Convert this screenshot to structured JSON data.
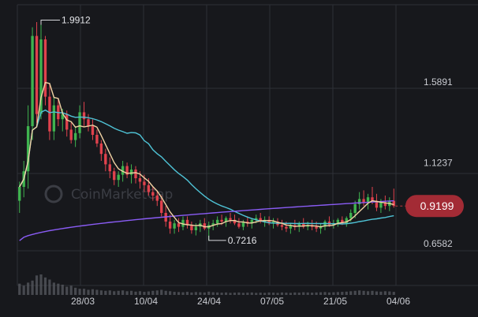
{
  "watermark": "CoinMarketCap",
  "chart_data": {
    "type": "candlestick",
    "y_ticks": [
      "1.5891",
      "1.1237",
      "0.6582"
    ],
    "y_tick_values": [
      1.5891,
      1.1237,
      0.6582
    ],
    "x_ticks": [
      "28/03",
      "10/04",
      "24/04",
      "07/05",
      "21/05",
      "04/06"
    ],
    "ylim": [
      0.58,
      2.08
    ],
    "grid": true,
    "annotations": {
      "high": {
        "label": "1.9912",
        "value": 1.9912,
        "index": 5
      },
      "low": {
        "label": "0.7216",
        "value": 0.7216,
        "index": 44
      }
    },
    "current_price": {
      "label": "0.9199",
      "value": 0.9199
    },
    "colors": {
      "up": "#3fb34f",
      "down": "#e0424d",
      "ma_short": "#f1d3a4",
      "ma_mid": "#4fc3d6",
      "ma_long": "#8a5cf5",
      "price_tag": "#a32b35",
      "grid": "#2e3036"
    },
    "candles": [
      [
        0.95,
        1.06,
        0.88,
        1.03
      ],
      [
        1.03,
        1.18,
        0.97,
        1.12
      ],
      [
        1.12,
        1.5,
        1.02,
        1.38
      ],
      [
        1.38,
        1.95,
        1.3,
        1.9
      ],
      [
        1.9,
        1.98,
        1.4,
        1.45
      ],
      [
        1.45,
        1.99,
        1.42,
        1.88
      ],
      [
        1.88,
        1.9,
        1.5,
        1.55
      ],
      [
        1.55,
        1.62,
        1.3,
        1.35
      ],
      [
        1.35,
        1.55,
        1.3,
        1.5
      ],
      [
        1.5,
        1.54,
        1.38,
        1.42
      ],
      [
        1.42,
        1.48,
        1.35,
        1.45
      ],
      [
        1.45,
        1.47,
        1.32,
        1.36
      ],
      [
        1.36,
        1.4,
        1.28,
        1.3
      ],
      [
        1.3,
        1.38,
        1.26,
        1.34
      ],
      [
        1.34,
        1.5,
        1.31,
        1.46
      ],
      [
        1.46,
        1.52,
        1.38,
        1.42
      ],
      [
        1.42,
        1.45,
        1.35,
        1.38
      ],
      [
        1.38,
        1.42,
        1.3,
        1.33
      ],
      [
        1.33,
        1.36,
        1.26,
        1.28
      ],
      [
        1.28,
        1.3,
        1.18,
        1.22
      ],
      [
        1.22,
        1.25,
        1.12,
        1.16
      ],
      [
        1.16,
        1.2,
        1.08,
        1.12
      ],
      [
        1.12,
        1.14,
        1.04,
        1.07
      ],
      [
        1.07,
        1.12,
        1.03,
        1.1
      ],
      [
        1.1,
        1.18,
        1.06,
        1.15
      ],
      [
        1.15,
        1.17,
        1.08,
        1.1
      ],
      [
        1.1,
        1.16,
        1.05,
        1.13
      ],
      [
        1.13,
        1.15,
        1.05,
        1.08
      ],
      [
        1.08,
        1.12,
        1.02,
        1.06
      ],
      [
        1.06,
        1.1,
        1.0,
        1.04
      ],
      [
        1.04,
        1.08,
        0.98,
        1.0
      ],
      [
        1.0,
        1.03,
        0.95,
        0.98
      ],
      [
        0.98,
        1.01,
        0.92,
        0.95
      ],
      [
        0.95,
        0.98,
        0.86,
        0.88
      ],
      [
        0.88,
        0.92,
        0.8,
        0.83
      ],
      [
        0.83,
        0.87,
        0.76,
        0.79
      ],
      [
        0.79,
        0.84,
        0.76,
        0.82
      ],
      [
        0.82,
        0.85,
        0.77,
        0.8
      ],
      [
        0.8,
        0.86,
        0.78,
        0.84
      ],
      [
        0.84,
        0.86,
        0.79,
        0.81
      ],
      [
        0.81,
        0.83,
        0.76,
        0.78
      ],
      [
        0.78,
        0.82,
        0.75,
        0.8
      ],
      [
        0.8,
        0.84,
        0.77,
        0.82
      ],
      [
        0.82,
        0.85,
        0.78,
        0.79
      ],
      [
        0.79,
        0.83,
        0.72,
        0.81
      ],
      [
        0.81,
        0.84,
        0.78,
        0.82
      ],
      [
        0.82,
        0.86,
        0.8,
        0.84
      ],
      [
        0.84,
        0.87,
        0.81,
        0.83
      ],
      [
        0.83,
        0.86,
        0.8,
        0.85
      ],
      [
        0.85,
        0.88,
        0.82,
        0.84
      ],
      [
        0.84,
        0.87,
        0.81,
        0.82
      ],
      [
        0.82,
        0.85,
        0.79,
        0.8
      ],
      [
        0.8,
        0.84,
        0.78,
        0.83
      ],
      [
        0.83,
        0.86,
        0.8,
        0.82
      ],
      [
        0.82,
        0.85,
        0.79,
        0.84
      ],
      [
        0.84,
        0.87,
        0.82,
        0.85
      ],
      [
        0.85,
        0.88,
        0.82,
        0.83
      ],
      [
        0.83,
        0.86,
        0.8,
        0.84
      ],
      [
        0.84,
        0.86,
        0.81,
        0.82
      ],
      [
        0.82,
        0.85,
        0.79,
        0.83
      ],
      [
        0.83,
        0.85,
        0.8,
        0.81
      ],
      [
        0.81,
        0.84,
        0.78,
        0.8
      ],
      [
        0.8,
        0.83,
        0.77,
        0.79
      ],
      [
        0.79,
        0.82,
        0.76,
        0.81
      ],
      [
        0.81,
        0.84,
        0.78,
        0.8
      ],
      [
        0.8,
        0.83,
        0.77,
        0.82
      ],
      [
        0.82,
        0.85,
        0.79,
        0.8
      ],
      [
        0.8,
        0.83,
        0.78,
        0.81
      ],
      [
        0.81,
        0.84,
        0.78,
        0.8
      ],
      [
        0.8,
        0.83,
        0.77,
        0.79
      ],
      [
        0.79,
        0.82,
        0.76,
        0.8
      ],
      [
        0.8,
        0.84,
        0.78,
        0.83
      ],
      [
        0.83,
        0.86,
        0.8,
        0.81
      ],
      [
        0.81,
        0.84,
        0.79,
        0.82
      ],
      [
        0.82,
        0.85,
        0.8,
        0.84
      ],
      [
        0.84,
        0.86,
        0.81,
        0.82
      ],
      [
        0.82,
        0.86,
        0.8,
        0.85
      ],
      [
        0.85,
        0.9,
        0.83,
        0.88
      ],
      [
        0.88,
        0.95,
        0.85,
        0.93
      ],
      [
        0.93,
        1.0,
        0.9,
        0.96
      ],
      [
        0.96,
        1.01,
        0.92,
        0.94
      ],
      [
        0.94,
        0.99,
        0.9,
        0.97
      ],
      [
        0.97,
        1.03,
        0.93,
        0.95
      ],
      [
        0.95,
        0.99,
        0.89,
        0.91
      ],
      [
        0.91,
        0.96,
        0.88,
        0.94
      ],
      [
        0.94,
        0.98,
        0.9,
        0.92
      ],
      [
        0.92,
        0.97,
        0.89,
        0.95
      ],
      [
        0.95,
        1.02,
        0.91,
        0.92
      ]
    ],
    "volume": [
      0.55,
      0.45,
      0.6,
      0.7,
      0.95,
      1.0,
      0.85,
      0.75,
      0.6,
      0.55,
      0.5,
      0.4,
      0.45,
      0.35,
      0.3,
      0.3,
      0.25,
      0.28,
      0.25,
      0.22,
      0.2,
      0.22,
      0.18,
      0.2,
      0.22,
      0.18,
      0.2,
      0.16,
      0.18,
      0.15,
      0.17,
      0.2,
      0.22,
      0.25,
      0.2,
      0.18,
      0.15,
      0.14,
      0.13,
      0.15,
      0.12,
      0.14,
      0.13,
      0.12,
      0.16,
      0.13,
      0.12,
      0.11,
      0.12,
      0.1,
      0.11,
      0.12,
      0.1,
      0.11,
      0.12,
      0.1,
      0.11,
      0.1,
      0.12,
      0.11,
      0.1,
      0.12,
      0.11,
      0.1,
      0.12,
      0.11,
      0.13,
      0.12,
      0.11,
      0.12,
      0.13,
      0.14,
      0.12,
      0.13,
      0.14,
      0.15,
      0.16,
      0.18,
      0.2,
      0.22,
      0.2,
      0.18,
      0.2,
      0.17,
      0.16,
      0.18,
      0.17,
      0.15
    ]
  }
}
